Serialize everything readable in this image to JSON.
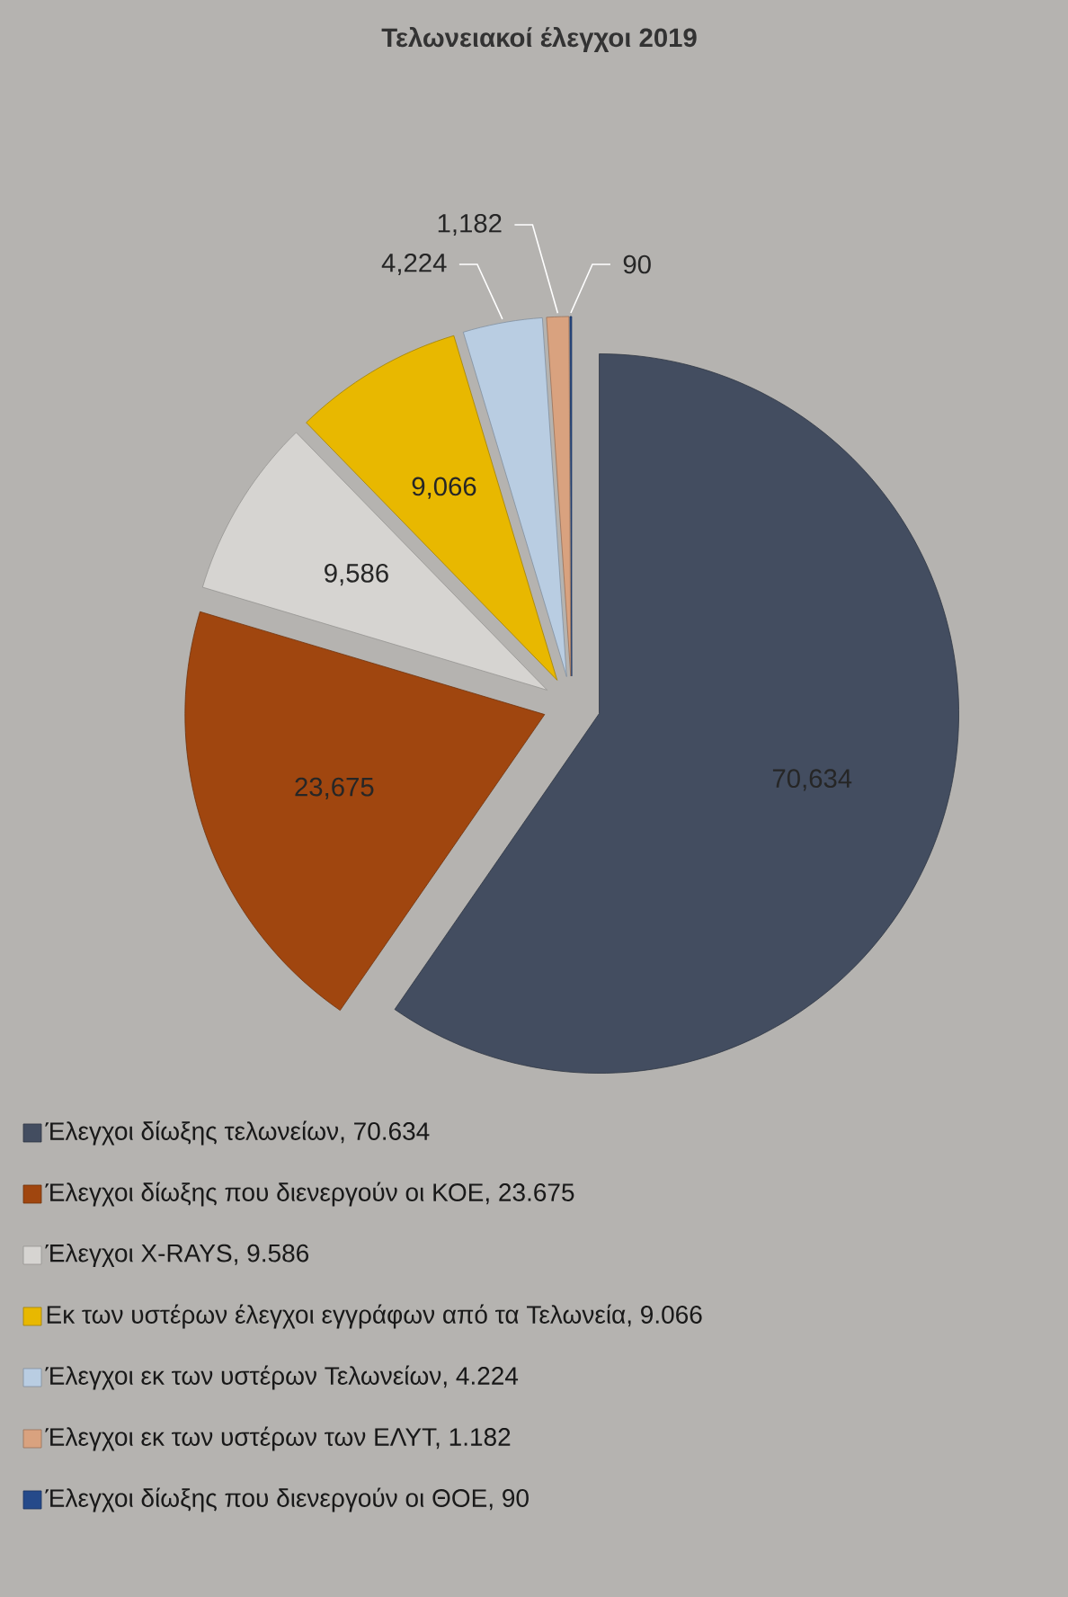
{
  "chart_data": {
    "type": "pie",
    "title": "Τελωνειακοί έλεγχοι 2019",
    "categories": [
      "Έλεγχοι δίωξης τελωνείων, 70.634",
      "Έλεγχοι δίωξης που διενεργούν οι  ΚΟΕ, 23.675",
      "Έλεγχοι X-RAYS, 9.586",
      "Εκ των υστέρων έλεγχοι εγγράφων από τα Τελωνεία, 9.066",
      "Έλεγχοι εκ των υστέρων Τελωνείων, 4.224",
      "Έλεγχοι εκ των υστέρων των ΕΛΥΤ, 1.182",
      "Έλεγχοι δίωξης που διενεργούν οι ΘΟΕ, 90"
    ],
    "values": [
      70634,
      23675,
      9586,
      9066,
      4224,
      1182,
      90
    ],
    "colors": [
      "#434d60",
      "#a0460f",
      "#d6d4d1",
      "#e8b800",
      "#b9cde2",
      "#d9a27f",
      "#254a8a"
    ],
    "value_labels": [
      "70,634",
      "23,675",
      "9,586",
      "9,066",
      "4,224",
      "1,182",
      "90"
    ],
    "legend": "bottom"
  }
}
